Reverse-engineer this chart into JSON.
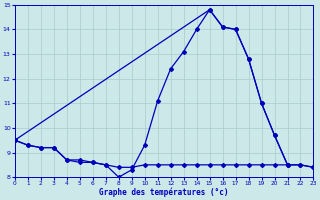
{
  "background_color": "#cce8e8",
  "line_color": "#0000bb",
  "grid_color": "#aacccc",
  "xlim": [
    0,
    23
  ],
  "ylim": [
    8,
    15
  ],
  "xticks": [
    0,
    1,
    2,
    3,
    4,
    5,
    6,
    7,
    8,
    9,
    10,
    11,
    12,
    13,
    14,
    15,
    16,
    17,
    18,
    19,
    20,
    21,
    22,
    23
  ],
  "yticks": [
    8,
    9,
    10,
    11,
    12,
    13,
    14,
    15
  ],
  "xlabel": "Graphe des températures (°c)",
  "line1_x": [
    0,
    1,
    2,
    3,
    4,
    5,
    6,
    7,
    8,
    9,
    10,
    11,
    12,
    13,
    14,
    15,
    16,
    17,
    18,
    19,
    20,
    21
  ],
  "line1_y": [
    9.5,
    9.3,
    9.2,
    9.2,
    8.7,
    8.7,
    8.6,
    8.5,
    8.0,
    8.3,
    9.3,
    11.1,
    12.4,
    13.1,
    14.0,
    14.8,
    14.1,
    14.0,
    12.8,
    11.0,
    9.7,
    8.5
  ],
  "line2_x": [
    0,
    1,
    2,
    3,
    4,
    5,
    6,
    7,
    8,
    9,
    10,
    11,
    12,
    13,
    14,
    15,
    16,
    17,
    18,
    19,
    20,
    21,
    22,
    23
  ],
  "line2_y": [
    9.5,
    9.3,
    9.2,
    9.2,
    8.7,
    8.6,
    8.6,
    8.5,
    8.4,
    8.4,
    8.5,
    8.5,
    8.5,
    8.5,
    8.5,
    8.5,
    8.5,
    8.5,
    8.5,
    8.5,
    8.5,
    8.5,
    8.5,
    8.4
  ],
  "line3_x": [
    0,
    15,
    16,
    17,
    18,
    19,
    20,
    21,
    22,
    23
  ],
  "line3_y": [
    9.5,
    14.8,
    14.1,
    14.0,
    12.8,
    11.0,
    9.7,
    8.5,
    8.5,
    8.4
  ]
}
